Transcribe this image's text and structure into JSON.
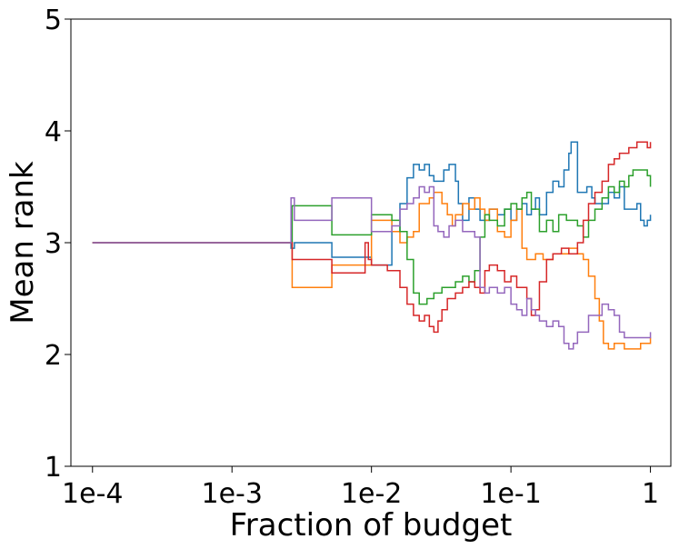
{
  "chart_data": {
    "type": "line",
    "title": "",
    "xlabel": "Fraction of budget",
    "ylabel": "Mean rank",
    "x_scale": "log",
    "xlim": [
      7e-05,
      1.4
    ],
    "ylim": [
      1,
      5
    ],
    "x_ticks": [
      {
        "value": 0.0001,
        "label": "1e-4"
      },
      {
        "value": 0.001,
        "label": "1e-3"
      },
      {
        "value": 0.01,
        "label": "1e-2"
      },
      {
        "value": 0.1,
        "label": "1e-1"
      },
      {
        "value": 1,
        "label": "1"
      }
    ],
    "y_ticks": [
      {
        "value": 1,
        "label": "1"
      },
      {
        "value": 2,
        "label": "2"
      },
      {
        "value": 3,
        "label": "3"
      },
      {
        "value": 4,
        "label": "4"
      },
      {
        "value": 5,
        "label": "5"
      }
    ],
    "grid": false,
    "legend": false,
    "series": [
      {
        "color": "#1f77b4",
        "points": [
          [
            0.0001,
            3.0
          ],
          [
            0.0026,
            3.0
          ],
          [
            0.00265,
            2.95
          ],
          [
            0.0028,
            3.0
          ],
          [
            0.005,
            3.0
          ],
          [
            0.0052,
            2.87
          ],
          [
            0.0085,
            2.87
          ],
          [
            0.01,
            2.8
          ],
          [
            0.013,
            2.8
          ],
          [
            0.014,
            3.1
          ],
          [
            0.016,
            3.35
          ],
          [
            0.018,
            3.58
          ],
          [
            0.02,
            3.7
          ],
          [
            0.022,
            3.65
          ],
          [
            0.024,
            3.7
          ],
          [
            0.026,
            3.6
          ],
          [
            0.028,
            3.55
          ],
          [
            0.03,
            3.55
          ],
          [
            0.033,
            3.65
          ],
          [
            0.036,
            3.7
          ],
          [
            0.04,
            3.55
          ],
          [
            0.042,
            3.35
          ],
          [
            0.045,
            3.2
          ],
          [
            0.05,
            3.4
          ],
          [
            0.055,
            3.3
          ],
          [
            0.06,
            3.2
          ],
          [
            0.065,
            3.2
          ],
          [
            0.07,
            3.3
          ],
          [
            0.08,
            3.25
          ],
          [
            0.09,
            3.3
          ],
          [
            0.1,
            3.2
          ],
          [
            0.11,
            3.3
          ],
          [
            0.12,
            3.35
          ],
          [
            0.13,
            3.25
          ],
          [
            0.14,
            3.3
          ],
          [
            0.15,
            3.4
          ],
          [
            0.16,
            3.25
          ],
          [
            0.18,
            3.45
          ],
          [
            0.2,
            3.55
          ],
          [
            0.22,
            3.5
          ],
          [
            0.24,
            3.65
          ],
          [
            0.26,
            3.8
          ],
          [
            0.27,
            3.9
          ],
          [
            0.29,
            3.9
          ],
          [
            0.3,
            3.45
          ],
          [
            0.33,
            3.45
          ],
          [
            0.35,
            3.5
          ],
          [
            0.38,
            3.4
          ],
          [
            0.4,
            3.35
          ],
          [
            0.45,
            3.35
          ],
          [
            0.5,
            3.45
          ],
          [
            0.55,
            3.4
          ],
          [
            0.6,
            3.5
          ],
          [
            0.65,
            3.3
          ],
          [
            0.7,
            3.3
          ],
          [
            0.8,
            3.35
          ],
          [
            0.85,
            3.2
          ],
          [
            0.9,
            3.15
          ],
          [
            0.95,
            3.2
          ],
          [
            1.0,
            3.25
          ]
        ]
      },
      {
        "color": "#ff7f0e",
        "points": [
          [
            0.0001,
            3.0
          ],
          [
            0.0026,
            3.0
          ],
          [
            0.0027,
            2.6
          ],
          [
            0.005,
            2.6
          ],
          [
            0.0052,
            2.8
          ],
          [
            0.0095,
            2.8
          ],
          [
            0.01,
            3.2
          ],
          [
            0.013,
            3.2
          ],
          [
            0.014,
            3.1
          ],
          [
            0.016,
            3.0
          ],
          [
            0.018,
            3.05
          ],
          [
            0.02,
            3.1
          ],
          [
            0.022,
            3.35
          ],
          [
            0.024,
            3.35
          ],
          [
            0.026,
            3.4
          ],
          [
            0.028,
            3.45
          ],
          [
            0.03,
            3.45
          ],
          [
            0.032,
            3.35
          ],
          [
            0.035,
            3.25
          ],
          [
            0.038,
            3.15
          ],
          [
            0.04,
            3.25
          ],
          [
            0.045,
            3.35
          ],
          [
            0.05,
            3.3
          ],
          [
            0.055,
            3.4
          ],
          [
            0.06,
            3.3
          ],
          [
            0.065,
            3.2
          ],
          [
            0.07,
            3.3
          ],
          [
            0.08,
            3.1
          ],
          [
            0.09,
            3.05
          ],
          [
            0.1,
            3.2
          ],
          [
            0.11,
            3.3
          ],
          [
            0.12,
            2.95
          ],
          [
            0.13,
            2.85
          ],
          [
            0.15,
            2.9
          ],
          [
            0.17,
            2.85
          ],
          [
            0.2,
            2.9
          ],
          [
            0.23,
            2.9
          ],
          [
            0.26,
            2.95
          ],
          [
            0.3,
            2.9
          ],
          [
            0.33,
            2.85
          ],
          [
            0.36,
            2.7
          ],
          [
            0.4,
            2.5
          ],
          [
            0.43,
            2.3
          ],
          [
            0.46,
            2.1
          ],
          [
            0.5,
            2.05
          ],
          [
            0.55,
            2.1
          ],
          [
            0.6,
            2.1
          ],
          [
            0.65,
            2.05
          ],
          [
            0.7,
            2.05
          ],
          [
            0.8,
            2.05
          ],
          [
            0.85,
            2.1
          ],
          [
            0.9,
            2.1
          ],
          [
            1.0,
            2.15
          ]
        ]
      },
      {
        "color": "#2ca02c",
        "points": [
          [
            0.0001,
            3.0
          ],
          [
            0.0026,
            3.0
          ],
          [
            0.0027,
            3.33
          ],
          [
            0.005,
            3.33
          ],
          [
            0.0052,
            3.07
          ],
          [
            0.0095,
            3.07
          ],
          [
            0.01,
            3.25
          ],
          [
            0.013,
            3.25
          ],
          [
            0.014,
            3.2
          ],
          [
            0.016,
            3.1
          ],
          [
            0.018,
            2.85
          ],
          [
            0.02,
            2.55
          ],
          [
            0.022,
            2.45
          ],
          [
            0.025,
            2.5
          ],
          [
            0.028,
            2.55
          ],
          [
            0.032,
            2.6
          ],
          [
            0.036,
            2.6
          ],
          [
            0.04,
            2.65
          ],
          [
            0.045,
            2.7
          ],
          [
            0.05,
            2.65
          ],
          [
            0.055,
            2.75
          ],
          [
            0.06,
            3.05
          ],
          [
            0.065,
            3.25
          ],
          [
            0.07,
            3.2
          ],
          [
            0.08,
            3.15
          ],
          [
            0.09,
            3.3
          ],
          [
            0.1,
            3.35
          ],
          [
            0.11,
            3.3
          ],
          [
            0.12,
            3.4
          ],
          [
            0.13,
            3.45
          ],
          [
            0.14,
            3.3
          ],
          [
            0.16,
            3.1
          ],
          [
            0.18,
            3.2
          ],
          [
            0.2,
            3.1
          ],
          [
            0.22,
            3.25
          ],
          [
            0.25,
            3.2
          ],
          [
            0.3,
            3.15
          ],
          [
            0.33,
            3.05
          ],
          [
            0.36,
            3.2
          ],
          [
            0.4,
            3.3
          ],
          [
            0.45,
            3.4
          ],
          [
            0.5,
            3.5
          ],
          [
            0.55,
            3.45
          ],
          [
            0.6,
            3.55
          ],
          [
            0.65,
            3.5
          ],
          [
            0.7,
            3.6
          ],
          [
            0.75,
            3.65
          ],
          [
            0.8,
            3.65
          ],
          [
            0.9,
            3.65
          ],
          [
            0.95,
            3.6
          ],
          [
            1.0,
            3.5
          ]
        ]
      },
      {
        "color": "#d62728",
        "points": [
          [
            0.0001,
            3.0
          ],
          [
            0.0026,
            3.0
          ],
          [
            0.0027,
            2.85
          ],
          [
            0.005,
            2.85
          ],
          [
            0.0052,
            2.73
          ],
          [
            0.0085,
            2.73
          ],
          [
            0.009,
            3.0
          ],
          [
            0.0095,
            2.85
          ],
          [
            0.01,
            2.8
          ],
          [
            0.013,
            2.75
          ],
          [
            0.014,
            2.75
          ],
          [
            0.016,
            2.6
          ],
          [
            0.018,
            2.45
          ],
          [
            0.02,
            2.35
          ],
          [
            0.022,
            2.3
          ],
          [
            0.024,
            2.35
          ],
          [
            0.026,
            2.25
          ],
          [
            0.028,
            2.2
          ],
          [
            0.03,
            2.3
          ],
          [
            0.032,
            2.4
          ],
          [
            0.035,
            2.5
          ],
          [
            0.04,
            2.55
          ],
          [
            0.045,
            2.6
          ],
          [
            0.05,
            2.65
          ],
          [
            0.055,
            2.6
          ],
          [
            0.06,
            2.55
          ],
          [
            0.065,
            2.75
          ],
          [
            0.07,
            2.8
          ],
          [
            0.08,
            2.75
          ],
          [
            0.09,
            2.65
          ],
          [
            0.1,
            2.7
          ],
          [
            0.11,
            2.6
          ],
          [
            0.12,
            2.6
          ],
          [
            0.13,
            2.5
          ],
          [
            0.14,
            2.35
          ],
          [
            0.15,
            2.4
          ],
          [
            0.16,
            2.65
          ],
          [
            0.18,
            2.85
          ],
          [
            0.2,
            2.9
          ],
          [
            0.23,
            2.95
          ],
          [
            0.26,
            2.9
          ],
          [
            0.3,
            3.0
          ],
          [
            0.33,
            3.2
          ],
          [
            0.36,
            3.35
          ],
          [
            0.4,
            3.45
          ],
          [
            0.45,
            3.55
          ],
          [
            0.5,
            3.7
          ],
          [
            0.55,
            3.75
          ],
          [
            0.6,
            3.8
          ],
          [
            0.65,
            3.8
          ],
          [
            0.7,
            3.85
          ],
          [
            0.75,
            3.85
          ],
          [
            0.8,
            3.9
          ],
          [
            0.9,
            3.9
          ],
          [
            0.95,
            3.85
          ],
          [
            1.0,
            3.9
          ]
        ]
      },
      {
        "color": "#9467bd",
        "points": [
          [
            0.0001,
            3.0
          ],
          [
            0.0026,
            3.0
          ],
          [
            0.00265,
            3.4
          ],
          [
            0.0028,
            3.2
          ],
          [
            0.005,
            3.2
          ],
          [
            0.0052,
            3.4
          ],
          [
            0.0095,
            3.4
          ],
          [
            0.01,
            3.1
          ],
          [
            0.013,
            3.1
          ],
          [
            0.014,
            3.15
          ],
          [
            0.016,
            3.3
          ],
          [
            0.018,
            3.35
          ],
          [
            0.02,
            3.4
          ],
          [
            0.022,
            3.5
          ],
          [
            0.024,
            3.45
          ],
          [
            0.026,
            3.5
          ],
          [
            0.028,
            3.15
          ],
          [
            0.03,
            3.1
          ],
          [
            0.033,
            3.05
          ],
          [
            0.036,
            3.15
          ],
          [
            0.04,
            3.2
          ],
          [
            0.045,
            3.1
          ],
          [
            0.05,
            3.1
          ],
          [
            0.055,
            3.05
          ],
          [
            0.06,
            2.6
          ],
          [
            0.065,
            2.55
          ],
          [
            0.07,
            2.6
          ],
          [
            0.08,
            2.55
          ],
          [
            0.09,
            2.6
          ],
          [
            0.1,
            2.45
          ],
          [
            0.11,
            2.4
          ],
          [
            0.12,
            2.35
          ],
          [
            0.13,
            2.5
          ],
          [
            0.14,
            2.4
          ],
          [
            0.15,
            2.35
          ],
          [
            0.16,
            2.3
          ],
          [
            0.18,
            2.25
          ],
          [
            0.2,
            2.3
          ],
          [
            0.22,
            2.25
          ],
          [
            0.24,
            2.1
          ],
          [
            0.26,
            2.05
          ],
          [
            0.28,
            2.1
          ],
          [
            0.3,
            2.2
          ],
          [
            0.33,
            2.2
          ],
          [
            0.36,
            2.35
          ],
          [
            0.4,
            2.35
          ],
          [
            0.45,
            2.45
          ],
          [
            0.5,
            2.4
          ],
          [
            0.55,
            2.35
          ],
          [
            0.6,
            2.2
          ],
          [
            0.65,
            2.15
          ],
          [
            0.7,
            2.15
          ],
          [
            0.8,
            2.15
          ],
          [
            0.9,
            2.15
          ],
          [
            1.0,
            2.2
          ]
        ]
      }
    ]
  }
}
